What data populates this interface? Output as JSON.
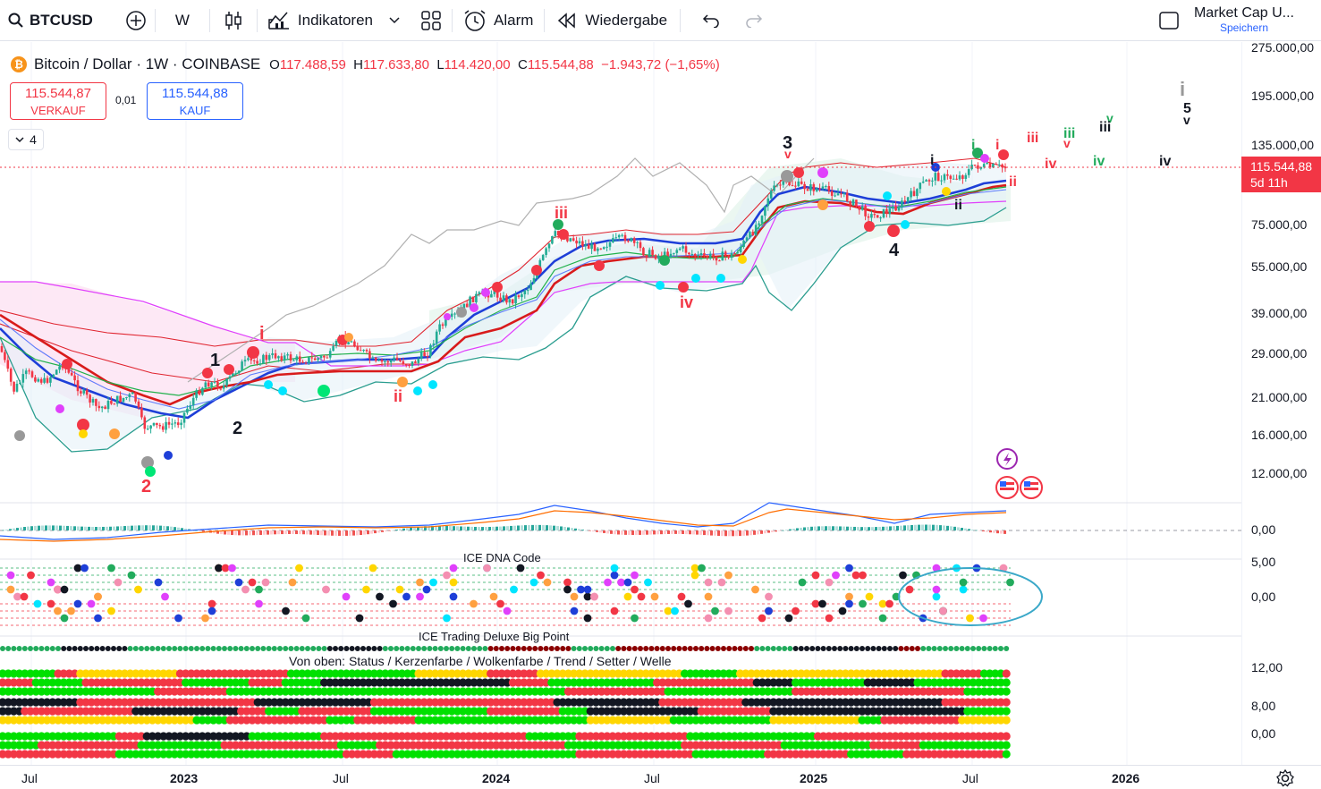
{
  "toolbar": {
    "symbol": "BTCUSD",
    "interval": "W",
    "indicators_label": "Indikatoren",
    "alert_label": "Alarm",
    "replay_label": "Wiedergabe",
    "layout_name": "Market Cap U...",
    "save_label": "Speichern"
  },
  "legend": {
    "name": "Bitcoin / Dollar · 1W · COINBASE",
    "open_key": "O",
    "open": "117.488,59",
    "high_key": "H",
    "high": "117.633,80",
    "low_key": "L",
    "low": "114.420,00",
    "close_key": "C",
    "close": "115.544,88",
    "change": "−1.943,72 (−1,65%)"
  },
  "trade": {
    "sell_price": "115.544,87",
    "sell_label": "VERKAUF",
    "spread": "0,01",
    "buy_price": "115.544,88",
    "buy_label": "KAUF"
  },
  "layers_count": "4",
  "price_scale": [
    "275.000,00",
    "195.000,00",
    "135.000,00",
    "75.000,00",
    "55.000,00",
    "39.000,00",
    "29.000,00",
    "21.000,00",
    "16.000,00",
    "12.000,00"
  ],
  "macd_scale": [
    "0,00"
  ],
  "dna_scale": [
    "5,00",
    "0,00"
  ],
  "bigpoint_scale": [
    "12,00",
    "8,00",
    "0,00"
  ],
  "current_price": {
    "value": "115.544,88",
    "countdown": "5d 11h"
  },
  "panes": {
    "dna_title": "ICE DNA Code",
    "bigpoint_title": "ICE Trading Deluxe Big Point",
    "bigpoint_subtitle": "Von oben: Status / Kerzenfarbe / Wolkenfarbe / Trend / Setter / Welle"
  },
  "time_axis": [
    {
      "label": "Jul",
      "bold": false
    },
    {
      "label": "2023",
      "bold": true
    },
    {
      "label": "Jul",
      "bold": false
    },
    {
      "label": "2024",
      "bold": true
    },
    {
      "label": "Jul",
      "bold": false
    },
    {
      "label": "2025",
      "bold": true
    },
    {
      "label": "Jul",
      "bold": false
    },
    {
      "label": "2026",
      "bold": true
    }
  ],
  "wave_labels": [
    "1",
    "2",
    "i",
    "ii",
    "iii",
    "iv",
    "2",
    "3",
    "4",
    "i",
    "ii",
    "iii",
    "iv",
    "v",
    "iii",
    "iv",
    "v",
    "iii",
    "iv",
    "v",
    "i",
    "5"
  ],
  "colors": {
    "up": "#22ab94",
    "down": "#f23645",
    "accent": "#2962ff",
    "macd": "#2962ff",
    "signal": "#ff6d00"
  },
  "chart_data": {
    "type": "candlestick",
    "symbol": "BTCUSD",
    "timeframe": "1W",
    "scale": "log",
    "ylim": [
      10000,
      300000
    ],
    "last": 115544.88,
    "open": 117488.59,
    "high": 117633.8,
    "low": 114420.0,
    "close": 115544.88
  }
}
